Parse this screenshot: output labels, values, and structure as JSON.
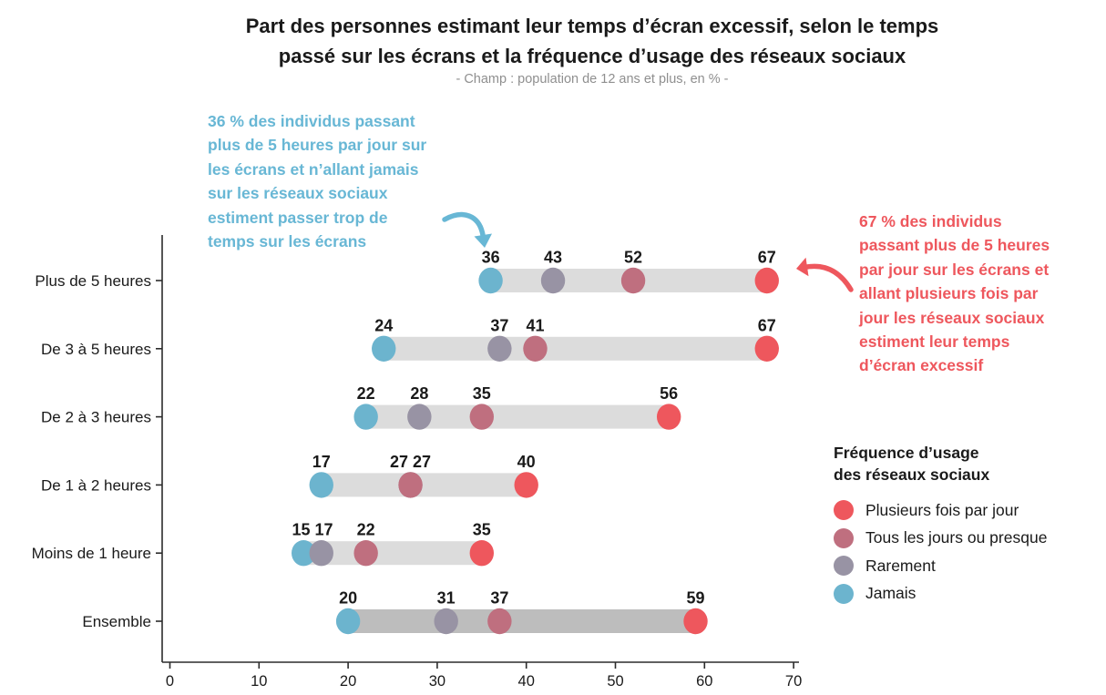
{
  "chart_data": {
    "type": "dumbbell",
    "title": "Part des personnes estimant leur temps d’écran excessif, selon le temps\npassé sur les écrans et la fréquence d’usage des réseaux sociaux",
    "subtitle": "- Champ : population de 12 ans et plus, en % -",
    "categories": [
      "Plus de 5 heures",
      "De 3 à 5 heures",
      "De 2 à 3 heures",
      "De 1 à 2 heures",
      "Moins de 1 heure",
      "Ensemble"
    ],
    "series": [
      {
        "name": "Plusieurs fois par jour",
        "color": "#EE575D",
        "values": [
          67,
          67,
          56,
          40,
          35,
          59
        ]
      },
      {
        "name": "Tous les jours ou presque",
        "color": "#BF6F7F",
        "values": [
          52,
          41,
          35,
          27,
          22,
          37
        ]
      },
      {
        "name": "Rarement",
        "color": "#9893A4",
        "values": [
          43,
          37,
          28,
          27,
          17,
          31
        ]
      },
      {
        "name": "Jamais",
        "color": "#6CB4CE",
        "values": [
          36,
          24,
          22,
          17,
          15,
          20
        ]
      }
    ],
    "xlim": [
      0,
      70
    ],
    "xticks": [
      0,
      10,
      20,
      30,
      40,
      50,
      60,
      70
    ],
    "grid": false,
    "unit": "%",
    "legend": {
      "title": "Fréquence d’usage\ndes réseaux sociaux",
      "position": "right"
    },
    "track_color_default": "#DCDCDC",
    "track_color_ensemble": "#BDBDBD",
    "axis_color": "#2b2b2b",
    "label_color": "#1a1a1a",
    "annotations": [
      {
        "id": "jamais-36",
        "text": "36 % des individus passant\nplus de 5 heures par jour sur\nles écrans et n’allant jamais\nsur les réseaux sociaux\nestiment passer trop de\ntemps sur les écrans",
        "color": "#68B7D5",
        "arrow": "curved-down-right"
      },
      {
        "id": "plusieurs-67",
        "text": "67 % des individus\npassant plus de 5 heures\npar jour sur les écrans et\nallant plusieurs fois par\njour les réseaux sociaux\nestiment leur temps\nd’écran excessif",
        "color": "#EE575D",
        "arrow": "curved-left"
      }
    ]
  }
}
